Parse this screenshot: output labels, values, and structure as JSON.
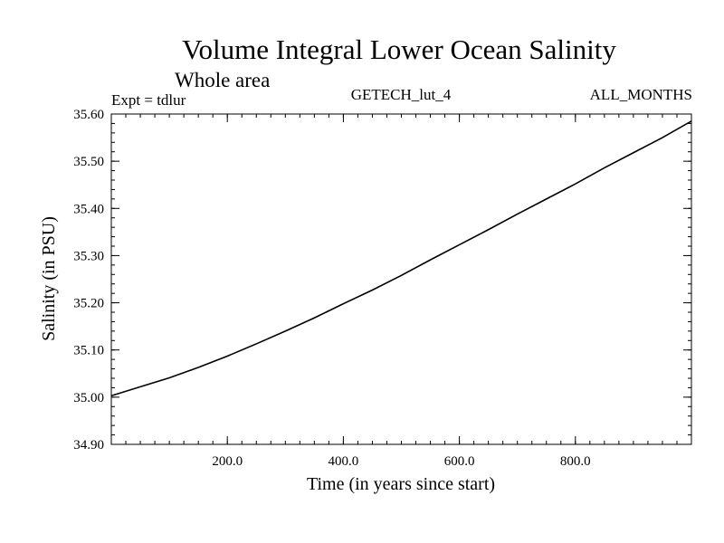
{
  "chart_data": {
    "type": "line",
    "title": "Volume Integral Lower Ocean Salinity",
    "subtitle": "Whole area",
    "annotations": {
      "left": "Expt = tdlur",
      "center": "GETECH_lut_4",
      "right": "ALL_MONTHS"
    },
    "xlabel": "Time (in years since start)",
    "ylabel": "Salinity (in PSU)",
    "xlim": [
      0,
      1000
    ],
    "ylim": [
      34.9,
      35.6
    ],
    "x_ticks": [
      200,
      400,
      600,
      800
    ],
    "x_tick_labels": [
      "200.0",
      "400.0",
      "600.0",
      "800.0"
    ],
    "y_ticks": [
      34.9,
      35.0,
      35.1,
      35.2,
      35.3,
      35.4,
      35.5,
      35.6
    ],
    "y_tick_labels": [
      "34.90",
      "35.00",
      "35.10",
      "35.20",
      "35.30",
      "35.40",
      "35.50",
      "35.60"
    ],
    "series": [
      {
        "name": "Volume integral lower ocean salinity",
        "x": [
          0,
          50,
          100,
          150,
          200,
          250,
          300,
          350,
          400,
          450,
          500,
          550,
          600,
          650,
          700,
          750,
          800,
          850,
          900,
          950,
          1000
        ],
        "values": [
          35.003,
          35.022,
          35.041,
          35.063,
          35.087,
          35.113,
          35.14,
          35.168,
          35.198,
          35.227,
          35.258,
          35.291,
          35.323,
          35.355,
          35.388,
          35.42,
          35.452,
          35.486,
          35.518,
          35.55,
          35.585
        ]
      }
    ]
  }
}
